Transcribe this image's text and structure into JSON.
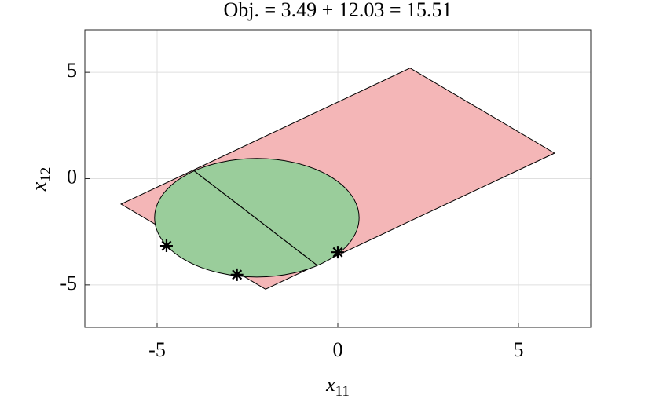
{
  "chart_data": {
    "type": "scatter",
    "title": "Obj. = 3.49 + 12.03 = 15.51",
    "xlabel": "x",
    "xlabel_sub": "11",
    "ylabel": "x",
    "ylabel_sub": "12",
    "xlim": [
      -7,
      7
    ],
    "ylim": [
      -7,
      7
    ],
    "xticks": [
      -5,
      0,
      5
    ],
    "yticks": [
      -5,
      0,
      5
    ],
    "grid": true,
    "polygon": {
      "x": [
        -6,
        2,
        6,
        -2
      ],
      "y": [
        -1.2,
        5.2,
        1.2,
        -5.2
      ],
      "color": "#f4b6b7"
    },
    "ellipse": {
      "cx": -2.24,
      "cy": -1.84,
      "rx": 2.83,
      "ry": 2.79,
      "color": "#9acd9b"
    },
    "segment": {
      "x": [
        -4.0,
        -0.57
      ],
      "y": [
        0.4,
        -4.08
      ],
      "color": "#000000"
    },
    "x": [
      -4.74,
      -2.79,
      0.0
    ],
    "values": [
      -3.16,
      -4.52,
      -3.46
    ],
    "marker_color": "#000000"
  }
}
